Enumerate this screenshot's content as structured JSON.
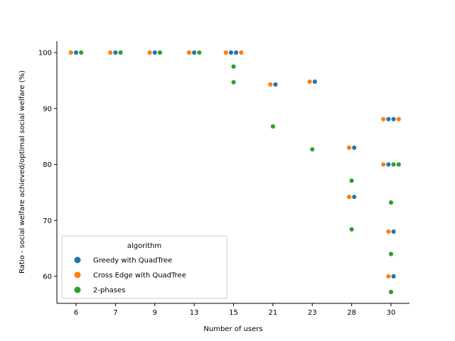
{
  "chart_data": {
    "type": "scatter",
    "subtype": "swarm",
    "xlabel": "Number of users",
    "ylabel": "Ratio - social welfare achieved/optimal social welfare (%)",
    "categories": [
      "6",
      "7",
      "9",
      "13",
      "15",
      "21",
      "23",
      "28",
      "30"
    ],
    "ylim": [
      55,
      102
    ],
    "yticks": [
      60,
      70,
      80,
      90,
      100
    ],
    "grid": false,
    "legend": {
      "title": "algorithm",
      "placement": "lower-left"
    },
    "series": [
      {
        "name": "Greedy with QuadTree",
        "color": "#1f77b4",
        "points": [
          {
            "category": "6",
            "y": 100
          },
          {
            "category": "7",
            "y": 100
          },
          {
            "category": "9",
            "y": 100
          },
          {
            "category": "13",
            "y": 100
          },
          {
            "category": "15",
            "y": 100
          },
          {
            "category": "15",
            "y": 100
          },
          {
            "category": "21",
            "y": 94.3
          },
          {
            "category": "23",
            "y": 94.8
          },
          {
            "category": "28",
            "y": 83
          },
          {
            "category": "28",
            "y": 74.2
          },
          {
            "category": "30",
            "y": 88.1
          },
          {
            "category": "30",
            "y": 88.1
          },
          {
            "category": "30",
            "y": 80
          },
          {
            "category": "30",
            "y": 68
          },
          {
            "category": "30",
            "y": 60
          }
        ]
      },
      {
        "name": "Cross Edge with QuadTree",
        "color": "#ff7f0e",
        "points": [
          {
            "category": "6",
            "y": 100
          },
          {
            "category": "7",
            "y": 100
          },
          {
            "category": "9",
            "y": 100
          },
          {
            "category": "13",
            "y": 100
          },
          {
            "category": "15",
            "y": 100
          },
          {
            "category": "15",
            "y": 100
          },
          {
            "category": "21",
            "y": 94.3
          },
          {
            "category": "23",
            "y": 94.8
          },
          {
            "category": "28",
            "y": 83
          },
          {
            "category": "28",
            "y": 74.2
          },
          {
            "category": "30",
            "y": 88.1
          },
          {
            "category": "30",
            "y": 88.1
          },
          {
            "category": "30",
            "y": 80
          },
          {
            "category": "30",
            "y": 68
          },
          {
            "category": "30",
            "y": 60
          }
        ]
      },
      {
        "name": "2-phases",
        "color": "#2ca02c",
        "points": [
          {
            "category": "6",
            "y": 100
          },
          {
            "category": "7",
            "y": 100
          },
          {
            "category": "9",
            "y": 100
          },
          {
            "category": "13",
            "y": 100
          },
          {
            "category": "15",
            "y": 97.5
          },
          {
            "category": "15",
            "y": 94.7
          },
          {
            "category": "21",
            "y": 86.8
          },
          {
            "category": "23",
            "y": 82.7
          },
          {
            "category": "28",
            "y": 77.1
          },
          {
            "category": "28",
            "y": 68.4
          },
          {
            "category": "30",
            "y": 80
          },
          {
            "category": "30",
            "y": 80
          },
          {
            "category": "30",
            "y": 73.2
          },
          {
            "category": "30",
            "y": 64
          },
          {
            "category": "30",
            "y": 57.2
          }
        ]
      }
    ]
  }
}
